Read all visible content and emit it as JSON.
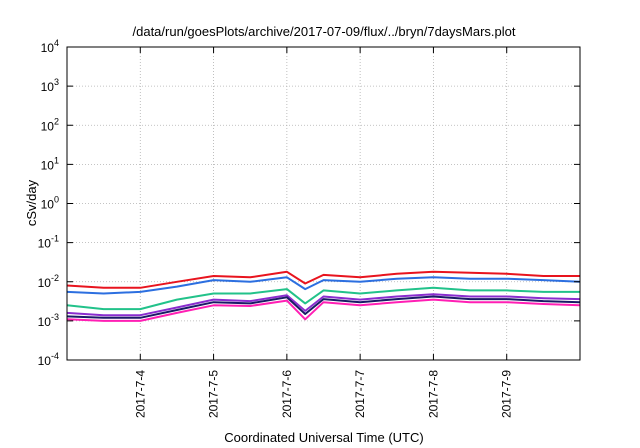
{
  "chart_data": {
    "type": "line",
    "title": "/data/run/goesPlots/archive/2017-07-09/flux/../bryn/7daysMars.plot",
    "xlabel": "Coordinated Universal Time (UTC)",
    "ylabel": "cSv/day",
    "y_scale": "log",
    "ylim": [
      0.0001,
      10000
    ],
    "y_ticks": [
      {
        "base": "10",
        "exp": "4"
      },
      {
        "base": "10",
        "exp": "3"
      },
      {
        "base": "10",
        "exp": "2"
      },
      {
        "base": "10",
        "exp": "1"
      },
      {
        "base": "10",
        "exp": "0"
      },
      {
        "base": "10",
        "exp": "-1"
      },
      {
        "base": "10",
        "exp": "-2"
      },
      {
        "base": "10",
        "exp": "-3"
      },
      {
        "base": "10",
        "exp": "-4"
      }
    ],
    "x_ticks": [
      "2017-7-4",
      "2017-7-5",
      "2017-7-6",
      "2017-7-7",
      "2017-7-8",
      "2017-7-9"
    ],
    "xlim": [
      "2017-07-03",
      "2017-07-10"
    ],
    "grid": true,
    "legend": "none",
    "series": [
      {
        "color": "#e8141e",
        "width": 2,
        "x": [
          "2017-07-03",
          "2017-07-03T12",
          "2017-07-04",
          "2017-07-04T12",
          "2017-07-05",
          "2017-07-05T12",
          "2017-07-06",
          "2017-07-06T06",
          "2017-07-06T12",
          "2017-07-07",
          "2017-07-07T12",
          "2017-07-08",
          "2017-07-08T12",
          "2017-07-09",
          "2017-07-09T12",
          "2017-07-10"
        ],
        "y": [
          0.008,
          0.007,
          0.007,
          0.01,
          0.014,
          0.013,
          0.018,
          0.009,
          0.015,
          0.013,
          0.016,
          0.018,
          0.017,
          0.016,
          0.014,
          0.014
        ]
      },
      {
        "color": "#2c6fe0",
        "width": 2,
        "x": [
          "2017-07-03",
          "2017-07-03T12",
          "2017-07-04",
          "2017-07-04T12",
          "2017-07-05",
          "2017-07-05T12",
          "2017-07-06",
          "2017-07-06T06",
          "2017-07-06T12",
          "2017-07-07",
          "2017-07-07T12",
          "2017-07-08",
          "2017-07-08T12",
          "2017-07-09",
          "2017-07-09T12",
          "2017-07-10"
        ],
        "y": [
          0.0055,
          0.005,
          0.0055,
          0.0075,
          0.011,
          0.01,
          0.013,
          0.0065,
          0.011,
          0.01,
          0.012,
          0.013,
          0.012,
          0.012,
          0.011,
          0.01
        ]
      },
      {
        "color": "#22c28a",
        "width": 2,
        "x": [
          "2017-07-03",
          "2017-07-03T12",
          "2017-07-04",
          "2017-07-04T12",
          "2017-07-05",
          "2017-07-05T12",
          "2017-07-06",
          "2017-07-06T06",
          "2017-07-06T12",
          "2017-07-07",
          "2017-07-07T12",
          "2017-07-08",
          "2017-07-08T12",
          "2017-07-09",
          "2017-07-09T12",
          "2017-07-10"
        ],
        "y": [
          0.0025,
          0.002,
          0.002,
          0.0035,
          0.005,
          0.005,
          0.0065,
          0.0028,
          0.006,
          0.005,
          0.006,
          0.007,
          0.006,
          0.006,
          0.0055,
          0.0055
        ]
      },
      {
        "color": "#8a2ccf",
        "width": 2,
        "x": [
          "2017-07-03",
          "2017-07-03T12",
          "2017-07-04",
          "2017-07-04T12",
          "2017-07-05",
          "2017-07-05T12",
          "2017-07-06",
          "2017-07-06T06",
          "2017-07-06T12",
          "2017-07-07",
          "2017-07-07T12",
          "2017-07-08",
          "2017-07-08T12",
          "2017-07-09",
          "2017-07-09T12",
          "2017-07-10"
        ],
        "y": [
          0.0016,
          0.0014,
          0.0014,
          0.0022,
          0.0035,
          0.0032,
          0.0045,
          0.0018,
          0.0042,
          0.0035,
          0.0042,
          0.0048,
          0.0042,
          0.0042,
          0.0038,
          0.0036
        ]
      },
      {
        "color": "#1a1a66",
        "width": 2,
        "x": [
          "2017-07-03",
          "2017-07-03T12",
          "2017-07-04",
          "2017-07-04T12",
          "2017-07-05",
          "2017-07-05T12",
          "2017-07-06",
          "2017-07-06T06",
          "2017-07-06T12",
          "2017-07-07",
          "2017-07-07T12",
          "2017-07-08",
          "2017-07-08T12",
          "2017-07-09",
          "2017-07-09T12",
          "2017-07-10"
        ],
        "y": [
          0.0013,
          0.0012,
          0.0012,
          0.0019,
          0.003,
          0.0028,
          0.004,
          0.0015,
          0.0036,
          0.003,
          0.0036,
          0.0042,
          0.0036,
          0.0036,
          0.0032,
          0.003
        ]
      },
      {
        "color": "#ff1fb4",
        "width": 2,
        "x": [
          "2017-07-03",
          "2017-07-03T12",
          "2017-07-04",
          "2017-07-04T12",
          "2017-07-05",
          "2017-07-05T12",
          "2017-07-06",
          "2017-07-06T06",
          "2017-07-06T12",
          "2017-07-07",
          "2017-07-07T12",
          "2017-07-08",
          "2017-07-08T12",
          "2017-07-09",
          "2017-07-09T12",
          "2017-07-10"
        ],
        "y": [
          0.0011,
          0.001,
          0.001,
          0.0016,
          0.0025,
          0.0024,
          0.0033,
          0.0011,
          0.003,
          0.0025,
          0.003,
          0.0035,
          0.003,
          0.003,
          0.0027,
          0.0025
        ]
      }
    ]
  }
}
